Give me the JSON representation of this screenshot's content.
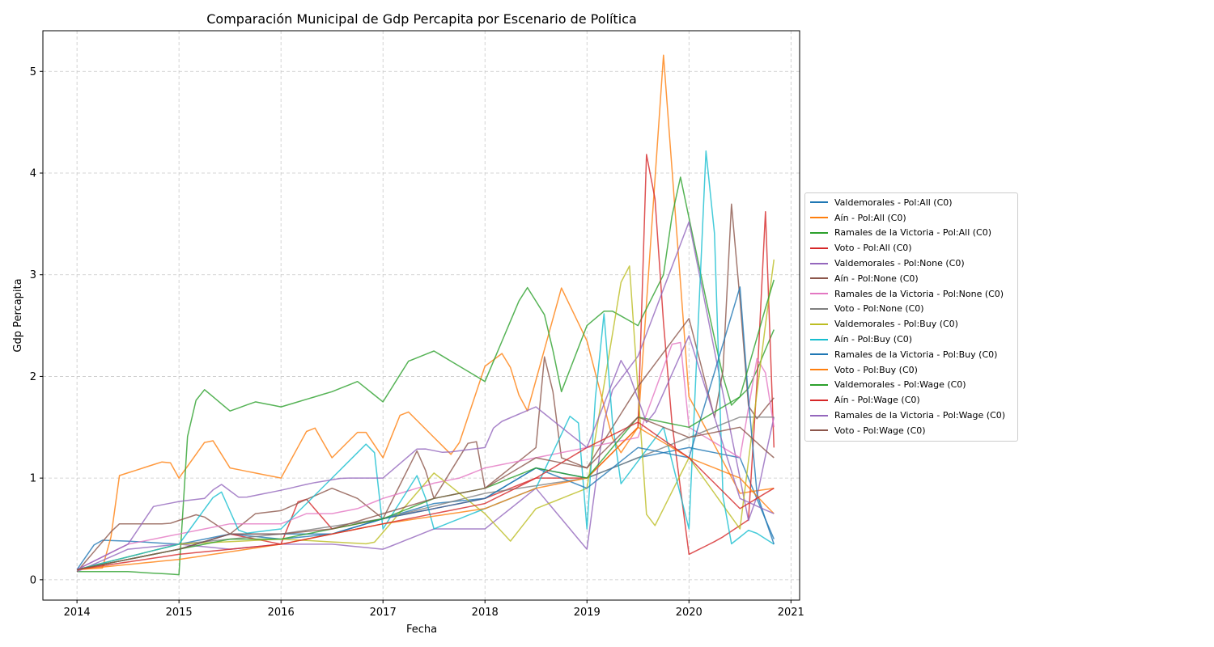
{
  "chart_data": {
    "type": "line",
    "title": "Comparación Municipal de Gdp Percapita por Escenario de Política",
    "xlabel": "Fecha",
    "ylabel": "Gdp Percapita",
    "x_range": [
      "2014-01",
      "2020-11"
    ],
    "xlim": [
      "2013-09-01",
      "2021-02-01"
    ],
    "ylim": [
      -0.2,
      5.4
    ],
    "x_ticks": [
      "2014",
      "2015",
      "2016",
      "2017",
      "2018",
      "2019",
      "2020",
      "2021"
    ],
    "y_ticks": [
      "0",
      "1",
      "2",
      "3",
      "4",
      "5"
    ],
    "grid": true,
    "legend_position": "center-right, outside plot",
    "series": [
      {
        "name": "Valdemorales - Pol:All (C0)",
        "color": "#1f77b4"
      },
      {
        "name": "Aín - Pol:All (C0)",
        "color": "#ff7f0e"
      },
      {
        "name": "Ramales de la Victoria - Pol:All (C0)",
        "color": "#2ca02c"
      },
      {
        "name": "Voto - Pol:All (C0)",
        "color": "#d62728"
      },
      {
        "name": "Valdemorales - Pol:None (C0)",
        "color": "#9467bd"
      },
      {
        "name": "Aín - Pol:None (C0)",
        "color": "#8c564b"
      },
      {
        "name": "Ramales de la Victoria - Pol:None (C0)",
        "color": "#e377c2"
      },
      {
        "name": "Voto - Pol:None (C0)",
        "color": "#7f7f7f"
      },
      {
        "name": "Valdemorales - Pol:Buy (C0)",
        "color": "#bcbd22"
      },
      {
        "name": "Aín - Pol:Buy (C0)",
        "color": "#17becf"
      },
      {
        "name": "Ramales de la Victoria - Pol:Buy (C0)",
        "color": "#1f77b4"
      },
      {
        "name": "Voto - Pol:Buy (C0)",
        "color": "#ff7f0e"
      },
      {
        "name": "Valdemorales - Pol:Wage (C0)",
        "color": "#2ca02c"
      },
      {
        "name": "Aín - Pol:Wage (C0)",
        "color": "#d62728"
      },
      {
        "name": "Ramales de la Victoria - Pol:Wage (C0)",
        "color": "#9467bd"
      },
      {
        "name": "Voto - Pol:Wage (C0)",
        "color": "#8c564b"
      }
    ],
    "anchors": [
      [
        [
          2014.0,
          0.1
        ],
        [
          2014.2,
          0.39
        ],
        [
          2014.5,
          0.38
        ],
        [
          2015.0,
          0.35
        ],
        [
          2015.5,
          0.45
        ],
        [
          2016.0,
          0.4
        ],
        [
          2016.5,
          0.45
        ],
        [
          2017.0,
          0.6
        ],
        [
          2017.5,
          0.75
        ],
        [
          2018.0,
          0.8
        ],
        [
          2018.5,
          1.1
        ],
        [
          2019.0,
          1.0
        ],
        [
          2019.5,
          1.2
        ],
        [
          2020.0,
          1.3
        ],
        [
          2020.5,
          1.2
        ],
        [
          2020.83,
          0.4
        ]
      ],
      [
        [
          2014.0,
          0.1
        ],
        [
          2014.3,
          0.12
        ],
        [
          2014.4,
          1.02
        ],
        [
          2014.9,
          1.18
        ],
        [
          2015.0,
          1.0
        ],
        [
          2015.3,
          1.42
        ],
        [
          2015.5,
          1.1
        ],
        [
          2016.0,
          1.0
        ],
        [
          2016.3,
          1.55
        ],
        [
          2016.5,
          1.2
        ],
        [
          2016.8,
          1.5
        ],
        [
          2017.0,
          1.2
        ],
        [
          2017.2,
          1.7
        ],
        [
          2017.5,
          1.4
        ],
        [
          2017.7,
          1.2
        ],
        [
          2018.0,
          2.1
        ],
        [
          2018.2,
          2.25
        ],
        [
          2018.4,
          1.6
        ],
        [
          2018.75,
          2.87
        ],
        [
          2019.0,
          2.35
        ],
        [
          2019.3,
          1.2
        ],
        [
          2019.5,
          1.5
        ],
        [
          2019.75,
          5.16
        ],
        [
          2020.0,
          1.8
        ],
        [
          2020.5,
          0.85
        ],
        [
          2020.83,
          0.9
        ]
      ],
      [
        [
          2014.0,
          0.08
        ],
        [
          2014.5,
          0.08
        ],
        [
          2015.0,
          0.05
        ],
        [
          2015.1,
          1.68
        ],
        [
          2015.25,
          1.87
        ],
        [
          2015.5,
          1.66
        ],
        [
          2015.75,
          1.75
        ],
        [
          2016.0,
          1.7
        ],
        [
          2016.5,
          1.85
        ],
        [
          2016.75,
          1.95
        ],
        [
          2017.0,
          1.75
        ],
        [
          2017.25,
          2.15
        ],
        [
          2017.5,
          2.25
        ],
        [
          2018.0,
          1.95
        ],
        [
          2018.4,
          2.9
        ],
        [
          2018.6,
          2.58
        ],
        [
          2018.75,
          1.85
        ],
        [
          2019.0,
          2.5
        ],
        [
          2019.2,
          2.67
        ],
        [
          2019.5,
          2.5
        ],
        [
          2019.75,
          3.0
        ],
        [
          2019.9,
          4.04
        ],
        [
          2020.2,
          2.6
        ],
        [
          2020.4,
          1.7
        ],
        [
          2020.6,
          1.9
        ],
        [
          2020.83,
          2.46
        ]
      ],
      [
        [
          2014.0,
          0.1
        ],
        [
          2015.0,
          0.3
        ],
        [
          2015.5,
          0.45
        ],
        [
          2016.0,
          0.35
        ],
        [
          2016.2,
          0.85
        ],
        [
          2016.5,
          0.5
        ],
        [
          2017.0,
          0.6
        ],
        [
          2017.5,
          0.7
        ],
        [
          2018.0,
          0.8
        ],
        [
          2018.5,
          1.0
        ],
        [
          2019.0,
          1.0
        ],
        [
          2019.5,
          1.5
        ],
        [
          2019.6,
          4.72
        ],
        [
          2019.8,
          1.8
        ],
        [
          2020.0,
          0.25
        ],
        [
          2020.3,
          0.4
        ],
        [
          2020.6,
          0.6
        ],
        [
          2020.75,
          3.62
        ],
        [
          2020.83,
          1.3
        ]
      ],
      [
        [
          2014.0,
          0.08
        ],
        [
          2014.5,
          0.3
        ],
        [
          2015.0,
          0.35
        ],
        [
          2015.5,
          0.3
        ],
        [
          2016.0,
          0.35
        ],
        [
          2016.5,
          0.35
        ],
        [
          2017.0,
          0.3
        ],
        [
          2017.5,
          0.5
        ],
        [
          2018.0,
          0.5
        ],
        [
          2018.5,
          0.9
        ],
        [
          2019.0,
          0.3
        ],
        [
          2019.2,
          1.8
        ],
        [
          2019.5,
          2.2
        ],
        [
          2020.0,
          3.52
        ],
        [
          2020.3,
          2.0
        ],
        [
          2020.6,
          0.5
        ],
        [
          2020.83,
          1.6
        ]
      ],
      [
        [
          2014.0,
          0.08
        ],
        [
          2014.4,
          0.55
        ],
        [
          2014.9,
          0.55
        ],
        [
          2015.2,
          0.65
        ],
        [
          2015.5,
          0.45
        ],
        [
          2015.75,
          0.65
        ],
        [
          2016.0,
          0.68
        ],
        [
          2016.5,
          0.9
        ],
        [
          2016.75,
          0.8
        ],
        [
          2017.0,
          0.6
        ],
        [
          2017.35,
          1.3
        ],
        [
          2017.5,
          0.8
        ],
        [
          2017.9,
          1.45
        ],
        [
          2018.0,
          0.9
        ],
        [
          2018.5,
          1.3
        ],
        [
          2018.6,
          2.37
        ],
        [
          2018.75,
          1.2
        ],
        [
          2019.0,
          1.1
        ],
        [
          2019.5,
          1.9
        ],
        [
          2020.0,
          2.57
        ],
        [
          2020.3,
          1.4
        ],
        [
          2020.42,
          3.76
        ],
        [
          2020.6,
          1.5
        ],
        [
          2020.83,
          1.79
        ]
      ],
      [
        [
          2014.0,
          0.1
        ],
        [
          2014.5,
          0.35
        ],
        [
          2015.0,
          0.45
        ],
        [
          2015.5,
          0.55
        ],
        [
          2016.0,
          0.55
        ],
        [
          2016.25,
          0.65
        ],
        [
          2016.5,
          0.65
        ],
        [
          2016.75,
          0.7
        ],
        [
          2017.0,
          0.8
        ],
        [
          2017.5,
          0.95
        ],
        [
          2017.75,
          1.0
        ],
        [
          2018.0,
          1.1
        ],
        [
          2018.5,
          1.2
        ],
        [
          2019.0,
          1.3
        ],
        [
          2019.5,
          1.4
        ],
        [
          2019.9,
          2.5
        ],
        [
          2020.0,
          1.5
        ],
        [
          2020.5,
          1.2
        ],
        [
          2020.7,
          2.37
        ],
        [
          2020.83,
          1.5
        ]
      ],
      [
        [
          2014.0,
          0.1
        ],
        [
          2015.0,
          0.35
        ],
        [
          2016.0,
          0.45
        ],
        [
          2017.0,
          0.6
        ],
        [
          2018.0,
          0.85
        ],
        [
          2019.0,
          1.0
        ],
        [
          2020.0,
          1.4
        ],
        [
          2020.5,
          1.6
        ],
        [
          2020.83,
          1.6
        ]
      ],
      [
        [
          2014.0,
          0.1
        ],
        [
          2015.0,
          0.35
        ],
        [
          2016.0,
          0.4
        ],
        [
          2016.9,
          0.35
        ],
        [
          2017.5,
          1.05
        ],
        [
          2018.0,
          0.65
        ],
        [
          2018.25,
          0.38
        ],
        [
          2018.5,
          0.7
        ],
        [
          2019.0,
          0.9
        ],
        [
          2019.4,
          3.33
        ],
        [
          2019.6,
          0.4
        ],
        [
          2020.0,
          1.2
        ],
        [
          2020.5,
          0.5
        ],
        [
          2020.83,
          3.15
        ]
      ],
      [
        [
          2014.0,
          0.1
        ],
        [
          2015.0,
          0.35
        ],
        [
          2015.4,
          0.9
        ],
        [
          2015.6,
          0.45
        ],
        [
          2016.0,
          0.5
        ],
        [
          2016.9,
          1.4
        ],
        [
          2017.0,
          0.5
        ],
        [
          2017.35,
          1.05
        ],
        [
          2017.5,
          0.5
        ],
        [
          2018.0,
          0.7
        ],
        [
          2018.5,
          0.9
        ],
        [
          2018.9,
          1.75
        ],
        [
          2019.0,
          0.5
        ],
        [
          2019.15,
          2.83
        ],
        [
          2019.3,
          0.9
        ],
        [
          2019.75,
          1.5
        ],
        [
          2020.0,
          0.5
        ],
        [
          2020.2,
          4.96
        ],
        [
          2020.35,
          0.3
        ],
        [
          2020.6,
          0.5
        ],
        [
          2020.83,
          0.35
        ]
      ],
      [
        [
          2014.0,
          0.1
        ],
        [
          2015.0,
          0.3
        ],
        [
          2015.5,
          0.45
        ],
        [
          2016.0,
          0.45
        ],
        [
          2016.5,
          0.45
        ],
        [
          2017.0,
          0.6
        ],
        [
          2017.5,
          0.7
        ],
        [
          2018.0,
          0.8
        ],
        [
          2018.5,
          1.1
        ],
        [
          2019.0,
          0.9
        ],
        [
          2019.5,
          1.3
        ],
        [
          2020.0,
          1.2
        ],
        [
          2020.5,
          2.88
        ],
        [
          2020.65,
          0.9
        ],
        [
          2020.83,
          0.35
        ]
      ],
      [
        [
          2014.0,
          0.1
        ],
        [
          2015.0,
          0.2
        ],
        [
          2016.0,
          0.35
        ],
        [
          2017.0,
          0.55
        ],
        [
          2018.0,
          0.7
        ],
        [
          2018.5,
          0.9
        ],
        [
          2019.0,
          1.0
        ],
        [
          2019.5,
          1.5
        ],
        [
          2020.0,
          1.2
        ],
        [
          2020.5,
          1.0
        ],
        [
          2020.83,
          0.65
        ]
      ],
      [
        [
          2014.0,
          0.1
        ],
        [
          2015.0,
          0.3
        ],
        [
          2015.5,
          0.4
        ],
        [
          2016.0,
          0.4
        ],
        [
          2016.5,
          0.5
        ],
        [
          2017.0,
          0.6
        ],
        [
          2017.5,
          0.8
        ],
        [
          2018.0,
          0.9
        ],
        [
          2018.5,
          1.1
        ],
        [
          2019.0,
          1.0
        ],
        [
          2019.5,
          1.6
        ],
        [
          2020.0,
          1.5
        ],
        [
          2020.5,
          1.8
        ],
        [
          2020.83,
          2.95
        ]
      ],
      [
        [
          2014.0,
          0.1
        ],
        [
          2015.0,
          0.25
        ],
        [
          2016.0,
          0.35
        ],
        [
          2017.0,
          0.55
        ],
        [
          2018.0,
          0.75
        ],
        [
          2018.5,
          1.0
        ],
        [
          2019.0,
          1.3
        ],
        [
          2019.5,
          1.55
        ],
        [
          2020.0,
          1.2
        ],
        [
          2020.5,
          0.7
        ],
        [
          2020.83,
          0.9
        ]
      ],
      [
        [
          2014.0,
          0.1
        ],
        [
          2014.5,
          0.35
        ],
        [
          2014.75,
          0.72
        ],
        [
          2015.0,
          0.77
        ],
        [
          2015.25,
          0.8
        ],
        [
          2015.4,
          0.95
        ],
        [
          2015.6,
          0.8
        ],
        [
          2016.0,
          0.88
        ],
        [
          2016.3,
          0.95
        ],
        [
          2016.6,
          1.0
        ],
        [
          2017.0,
          1.0
        ],
        [
          2017.35,
          1.3
        ],
        [
          2017.6,
          1.25
        ],
        [
          2018.0,
          1.3
        ],
        [
          2018.1,
          1.53
        ],
        [
          2018.5,
          1.7
        ],
        [
          2018.75,
          1.5
        ],
        [
          2019.0,
          1.3
        ],
        [
          2019.35,
          2.2
        ],
        [
          2019.6,
          1.5
        ],
        [
          2020.0,
          2.4
        ],
        [
          2020.5,
          0.8
        ],
        [
          2020.83,
          0.65
        ]
      ],
      [
        [
          2014.0,
          0.1
        ],
        [
          2015.0,
          0.3
        ],
        [
          2015.5,
          0.45
        ],
        [
          2016.0,
          0.45
        ],
        [
          2016.5,
          0.5
        ],
        [
          2017.0,
          0.65
        ],
        [
          2017.5,
          0.8
        ],
        [
          2018.0,
          0.9
        ],
        [
          2018.5,
          1.2
        ],
        [
          2019.0,
          1.1
        ],
        [
          2019.5,
          1.6
        ],
        [
          2020.0,
          1.4
        ],
        [
          2020.5,
          1.5
        ],
        [
          2020.83,
          1.2
        ]
      ]
    ]
  }
}
